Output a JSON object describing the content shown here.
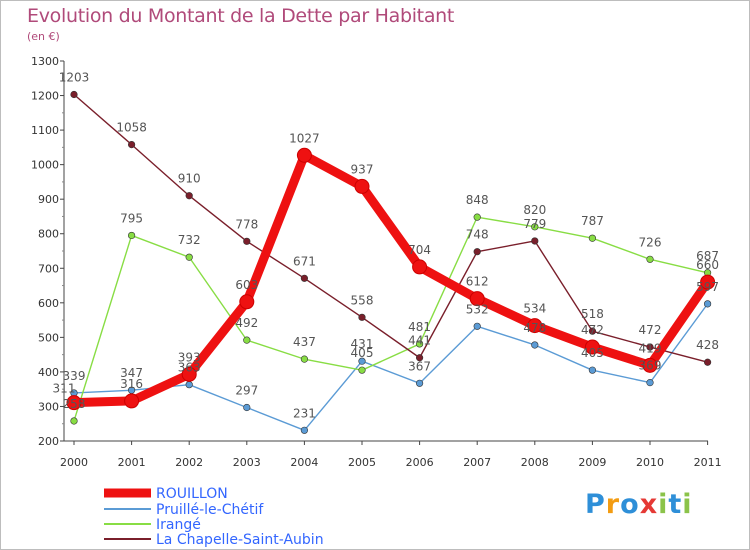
{
  "chart_data": {
    "type": "line",
    "title": "Evolution du Montant de la Dette par Habitant",
    "subtitle": "(en €)",
    "x": [
      "2000",
      "2001",
      "2002",
      "2003",
      "2004",
      "2005",
      "2006",
      "2007",
      "2008",
      "2009",
      "2010",
      "2011"
    ],
    "ylim": [
      200,
      1300
    ],
    "yticks": [
      200,
      300,
      400,
      500,
      600,
      700,
      800,
      900,
      1000,
      1100,
      1200,
      1300
    ],
    "grid": false,
    "legend_position": "bottom-left",
    "series": [
      {
        "name": "ROUILLON",
        "color": "#ee1111",
        "values": [
          311,
          316,
          393,
          603,
          1027,
          937,
          704,
          612,
          534,
          472,
          419,
          660
        ]
      },
      {
        "name": "Pruillé-le-Chétif",
        "color": "#5b9bd5",
        "values": [
          339,
          347,
          363,
          297,
          231,
          431,
          367,
          532,
          478,
          405,
          369,
          597
        ]
      },
      {
        "name": "Irangé",
        "color": "#88dd44",
        "values": [
          258,
          795,
          732,
          492,
          437,
          405,
          481,
          848,
          820,
          787,
          726,
          687
        ]
      },
      {
        "name": "La Chapelle-Saint-Aubin",
        "color": "#7a1f2b",
        "values": [
          1203,
          1058,
          910,
          778,
          671,
          558,
          441,
          748,
          779,
          518,
          472,
          428
        ]
      }
    ]
  },
  "labels": [
    {
      "text": "311",
      "s": 0,
      "i": 0,
      "dx": -10,
      "dy": -10
    },
    {
      "text": "316",
      "s": 0,
      "i": 1,
      "dx": 0,
      "dy": -13
    },
    {
      "text": "393",
      "s": 0,
      "i": 2,
      "dx": 0,
      "dy": -13
    },
    {
      "text": "603",
      "s": 0,
      "i": 3,
      "dx": 0,
      "dy": -13
    },
    {
      "text": "1027",
      "s": 0,
      "i": 4,
      "dx": 0,
      "dy": -13
    },
    {
      "text": "937",
      "s": 0,
      "i": 5,
      "dx": 0,
      "dy": -13
    },
    {
      "text": "704",
      "s": 0,
      "i": 6,
      "dx": 0,
      "dy": -13
    },
    {
      "text": "612",
      "s": 0,
      "i": 7,
      "dx": 0,
      "dy": -13
    },
    {
      "text": "534",
      "s": 0,
      "i": 8,
      "dx": 0,
      "dy": -13
    },
    {
      "text": "472",
      "s": 0,
      "i": 9,
      "dx": 0,
      "dy": -13
    },
    {
      "text": "419",
      "s": 0,
      "i": 10,
      "dx": 0,
      "dy": -13
    },
    {
      "text": "660",
      "s": 0,
      "i": 11,
      "dx": 0,
      "dy": -13
    },
    {
      "text": "339",
      "s": 1,
      "i": 0,
      "dx": 0,
      "dy": -13
    },
    {
      "text": "347",
      "s": 1,
      "i": 1,
      "dx": 0,
      "dy": -13
    },
    {
      "text": "363",
      "s": 1,
      "i": 2,
      "dx": 0,
      "dy": -13
    },
    {
      "text": "297",
      "s": 1,
      "i": 3,
      "dx": 0,
      "dy": -13
    },
    {
      "text": "231",
      "s": 1,
      "i": 4,
      "dx": 0,
      "dy": -13
    },
    {
      "text": "431",
      "s": 1,
      "i": 5,
      "dx": 0,
      "dy": -13
    },
    {
      "text": "367",
      "s": 1,
      "i": 6,
      "dx": 0,
      "dy": -13
    },
    {
      "text": "532",
      "s": 1,
      "i": 7,
      "dx": 0,
      "dy": -13
    },
    {
      "text": "478",
      "s": 1,
      "i": 8,
      "dx": 0,
      "dy": -13
    },
    {
      "text": "405",
      "s": 1,
      "i": 9,
      "dx": 0,
      "dy": -13
    },
    {
      "text": "369",
      "s": 1,
      "i": 10,
      "dx": 0,
      "dy": -13
    },
    {
      "text": "597",
      "s": 1,
      "i": 11,
      "dx": 0,
      "dy": -13
    },
    {
      "text": "258",
      "s": 2,
      "i": 0,
      "dx": 0,
      "dy": -13
    },
    {
      "text": "795",
      "s": 2,
      "i": 1,
      "dx": 0,
      "dy": -13
    },
    {
      "text": "732",
      "s": 2,
      "i": 2,
      "dx": 0,
      "dy": -13
    },
    {
      "text": "492",
      "s": 2,
      "i": 3,
      "dx": 0,
      "dy": -13
    },
    {
      "text": "437",
      "s": 2,
      "i": 4,
      "dx": 0,
      "dy": -13
    },
    {
      "text": "405",
      "s": 2,
      "i": 5,
      "dx": 0,
      "dy": -13
    },
    {
      "text": "481",
      "s": 2,
      "i": 6,
      "dx": 0,
      "dy": -13
    },
    {
      "text": "848",
      "s": 2,
      "i": 7,
      "dx": 0,
      "dy": -13
    },
    {
      "text": "820",
      "s": 2,
      "i": 8,
      "dx": 0,
      "dy": -13
    },
    {
      "text": "787",
      "s": 2,
      "i": 9,
      "dx": 0,
      "dy": -13
    },
    {
      "text": "726",
      "s": 2,
      "i": 10,
      "dx": 0,
      "dy": -13
    },
    {
      "text": "687",
      "s": 2,
      "i": 11,
      "dx": 0,
      "dy": -13
    },
    {
      "text": "1203",
      "s": 3,
      "i": 0,
      "dx": 0,
      "dy": -13
    },
    {
      "text": "1058",
      "s": 3,
      "i": 1,
      "dx": 0,
      "dy": -13
    },
    {
      "text": "910",
      "s": 3,
      "i": 2,
      "dx": 0,
      "dy": -13
    },
    {
      "text": "778",
      "s": 3,
      "i": 3,
      "dx": 0,
      "dy": -13
    },
    {
      "text": "671",
      "s": 3,
      "i": 4,
      "dx": 0,
      "dy": -13
    },
    {
      "text": "558",
      "s": 3,
      "i": 5,
      "dx": 0,
      "dy": -13
    },
    {
      "text": "441",
      "s": 3,
      "i": 6,
      "dx": 0,
      "dy": -13
    },
    {
      "text": "748",
      "s": 3,
      "i": 7,
      "dx": 0,
      "dy": -13
    },
    {
      "text": "779",
      "s": 3,
      "i": 8,
      "dx": 0,
      "dy": -13
    },
    {
      "text": "518",
      "s": 3,
      "i": 9,
      "dx": 0,
      "dy": -13
    },
    {
      "text": "472",
      "s": 3,
      "i": 10,
      "dx": 0,
      "dy": -13
    },
    {
      "text": "428",
      "s": 3,
      "i": 11,
      "dx": 0,
      "dy": -13
    }
  ],
  "brand": {
    "letters": [
      {
        "t": "P",
        "color": "#2e8fd8"
      },
      {
        "t": "r",
        "color": "#f39c12"
      },
      {
        "t": "o",
        "color": "#2e8fd8"
      },
      {
        "t": "x",
        "color": "#e53935"
      },
      {
        "t": "i",
        "color": "#8bc34a"
      },
      {
        "t": "t",
        "color": "#2e8fd8"
      },
      {
        "t": "i",
        "color": "#8bc34a"
      }
    ]
  }
}
